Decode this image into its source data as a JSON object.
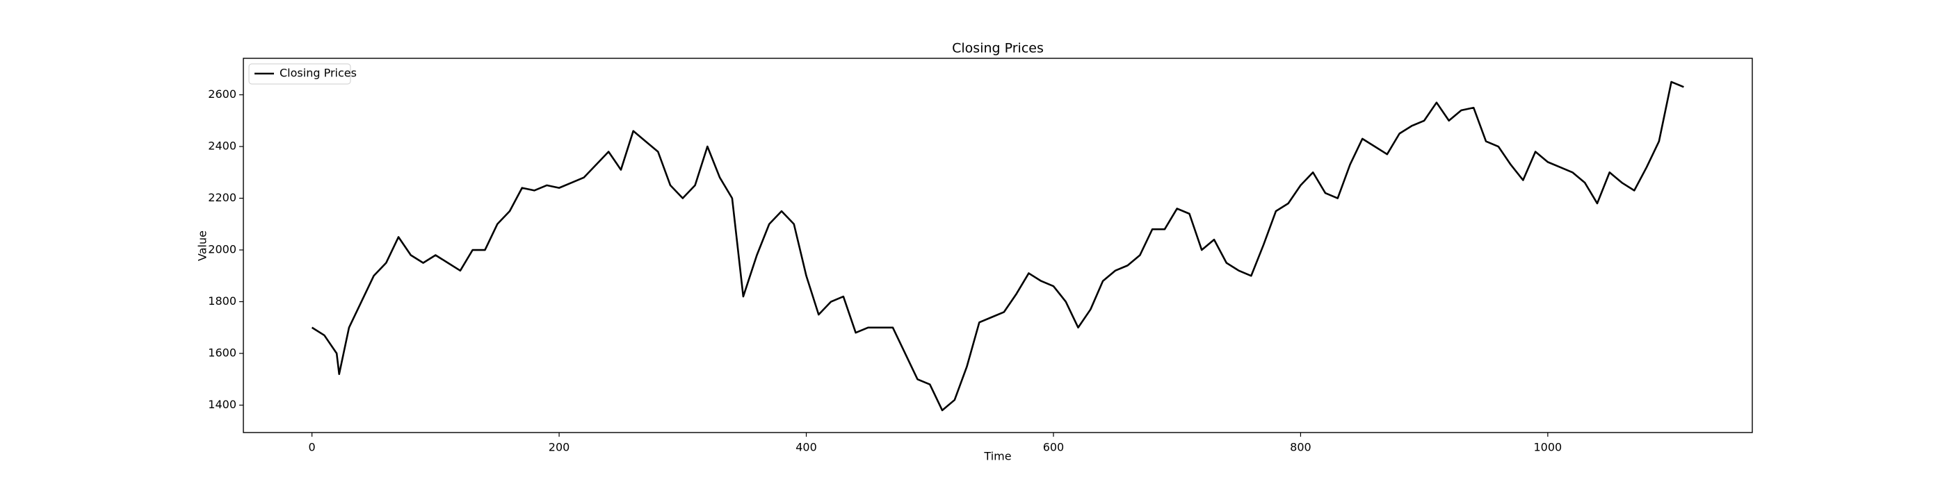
{
  "chart_data": {
    "type": "line",
    "title": "Closing Prices",
    "x_label": "Time",
    "y_label": "Value",
    "legend": "upper left",
    "x": [
      0,
      10,
      20,
      22,
      30,
      40,
      50,
      60,
      70,
      80,
      90,
      100,
      110,
      120,
      130,
      140,
      150,
      160,
      170,
      180,
      190,
      200,
      210,
      220,
      230,
      240,
      250,
      260,
      270,
      280,
      290,
      300,
      310,
      320,
      330,
      340,
      349,
      360,
      370,
      380,
      390,
      400,
      410,
      420,
      430,
      440,
      450,
      460,
      470,
      480,
      490,
      500,
      510,
      520,
      530,
      540,
      550,
      560,
      570,
      580,
      590,
      600,
      610,
      620,
      630,
      640,
      650,
      660,
      670,
      680,
      690,
      700,
      710,
      720,
      730,
      740,
      750,
      760,
      770,
      780,
      790,
      800,
      810,
      820,
      830,
      840,
      850,
      860,
      870,
      880,
      890,
      900,
      910,
      920,
      930,
      940,
      950,
      960,
      970,
      980,
      990,
      1000,
      1010,
      1020,
      1030,
      1040,
      1050,
      1060,
      1070,
      1080,
      1090,
      1100,
      1110
    ],
    "series": [
      {
        "name": "Closing Prices",
        "color": "#000000",
        "values": [
          1700,
          1670,
          1600,
          1520,
          1700,
          1800,
          1900,
          1950,
          2050,
          1980,
          1950,
          1980,
          1950,
          1920,
          2000,
          2000,
          2100,
          2150,
          2240,
          2230,
          2250,
          2240,
          2260,
          2280,
          2330,
          2380,
          2310,
          2460,
          2420,
          2380,
          2250,
          2200,
          2250,
          2400,
          2280,
          2200,
          1820,
          1980,
          2100,
          2150,
          2100,
          1900,
          1750,
          1800,
          1820,
          1680,
          1700,
          1700,
          1700,
          1600,
          1500,
          1480,
          1380,
          1420,
          1550,
          1720,
          1740,
          1760,
          1830,
          1910,
          1880,
          1860,
          1800,
          1700,
          1770,
          1880,
          1920,
          1940,
          1980,
          2080,
          2080,
          2160,
          2140,
          2000,
          2040,
          1950,
          1920,
          1900,
          2020,
          2150,
          2180,
          2250,
          2300,
          2220,
          2200,
          2330,
          2430,
          2400,
          2370,
          2450,
          2480,
          2500,
          2570,
          2500,
          2540,
          2550,
          2420,
          2400,
          2330,
          2270,
          2380,
          2340,
          2320,
          2300,
          2260,
          2180,
          2300,
          2260,
          2230,
          2320,
          2420,
          2650,
          2630
        ]
      }
    ],
    "xlim": [
      -55.5,
      1165.5
    ],
    "ylim": [
      1294,
      2741
    ],
    "xticks": [
      0,
      200,
      400,
      600,
      800,
      1000
    ],
    "yticks": [
      1400,
      1600,
      1800,
      2000,
      2200,
      2400,
      2600
    ]
  }
}
